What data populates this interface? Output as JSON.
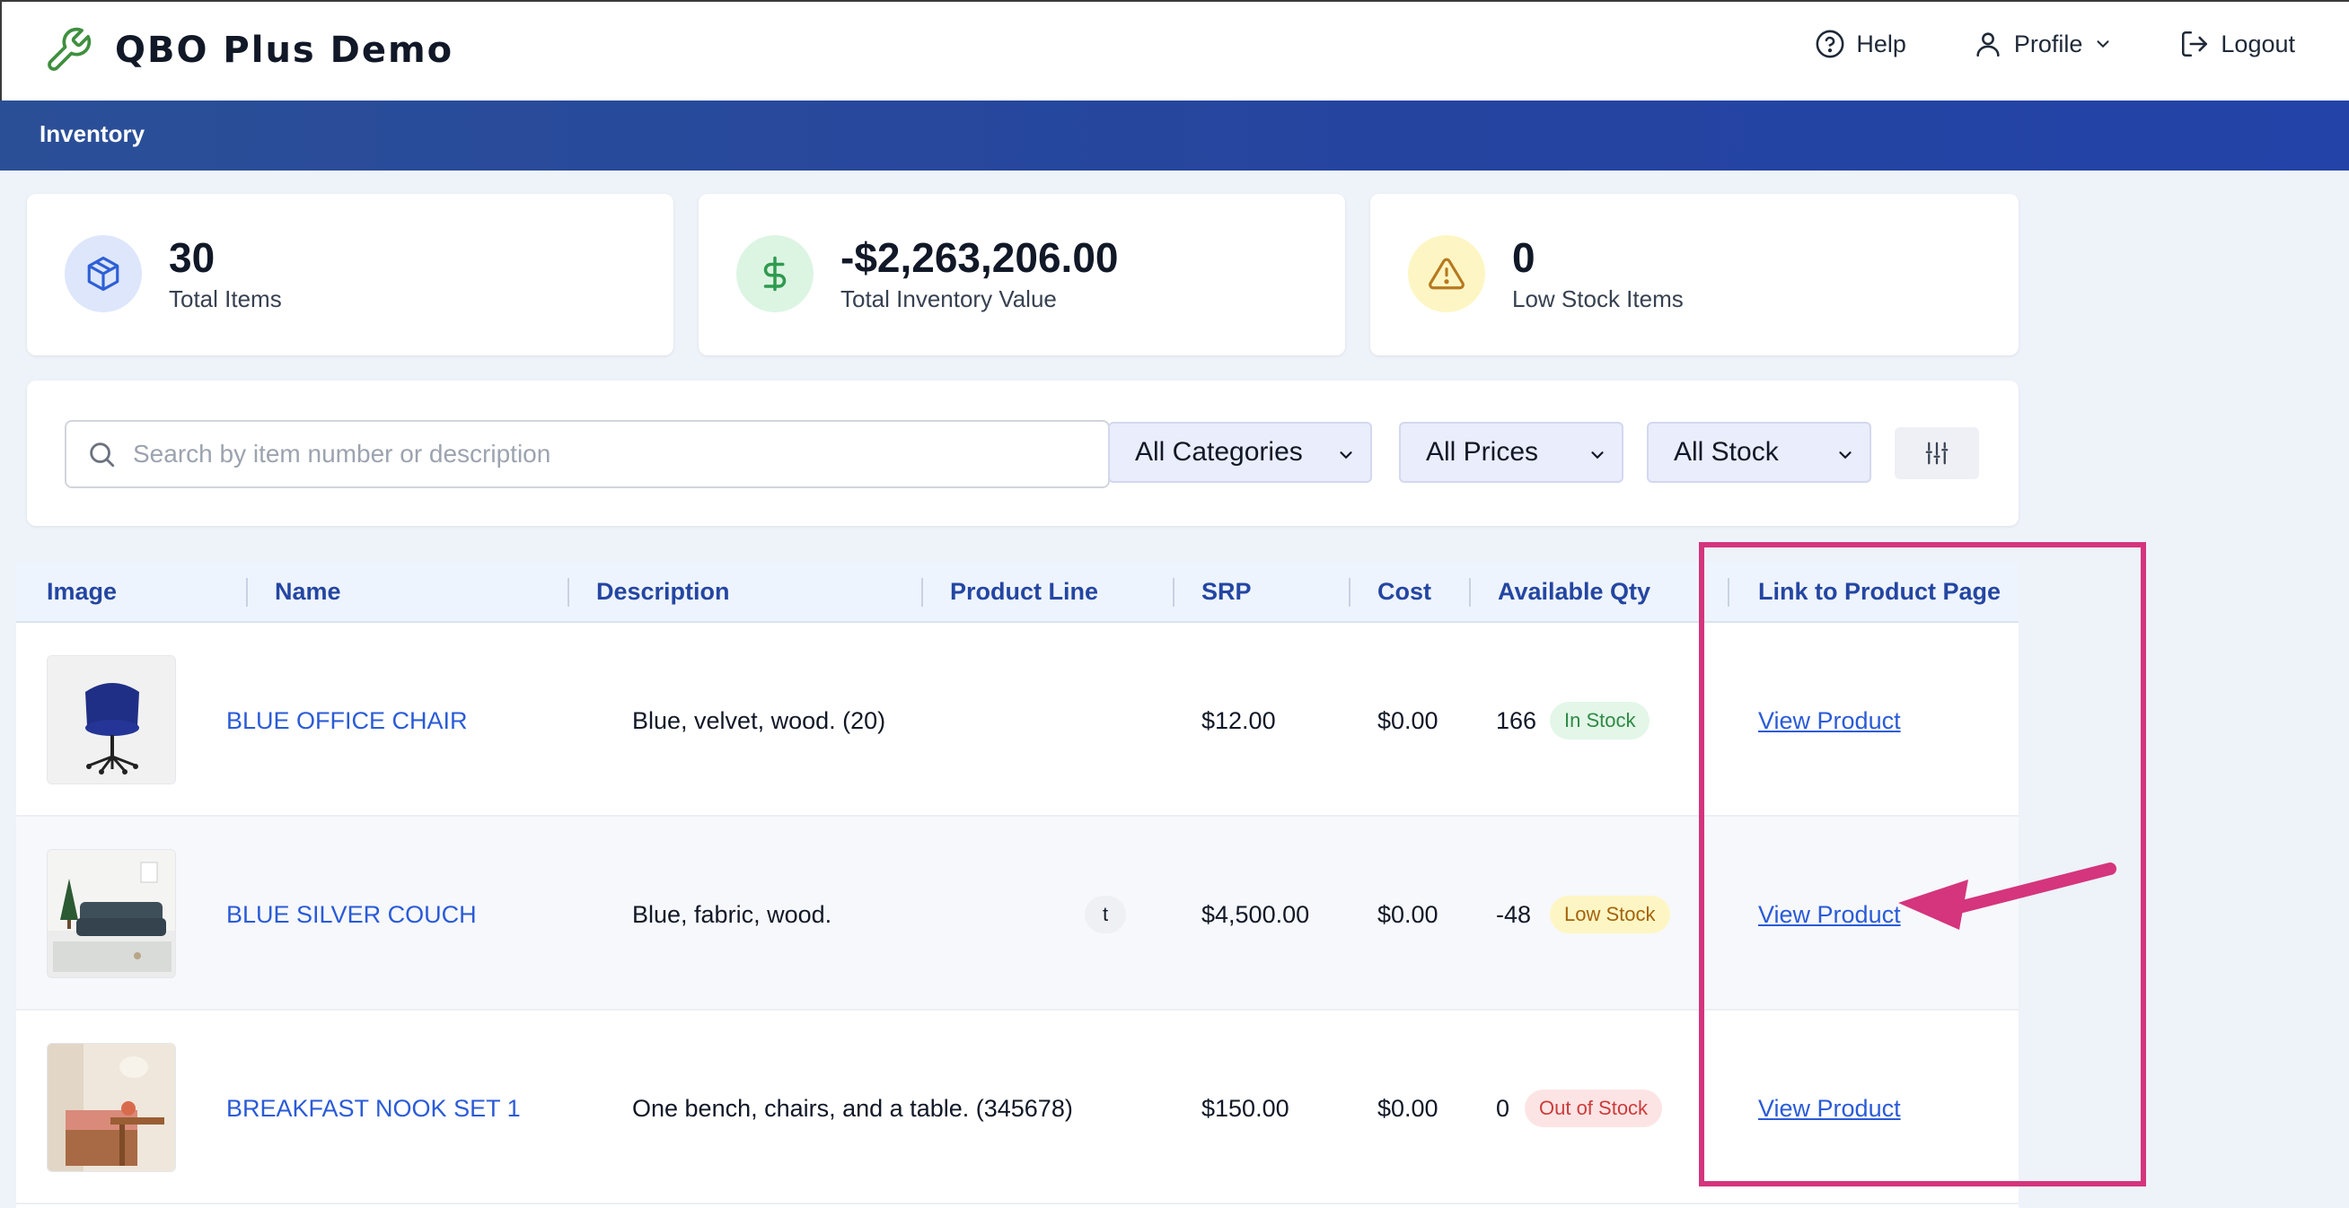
{
  "header": {
    "title": "QBO Plus Demo",
    "help": "Help",
    "profile": "Profile",
    "logout": "Logout"
  },
  "nav": {
    "current": "Inventory"
  },
  "stats": [
    {
      "value": "30",
      "label": "Total Items",
      "icon": "box-icon"
    },
    {
      "value": "-$2,263,206.00",
      "label": "Total Inventory Value",
      "icon": "dollar-icon"
    },
    {
      "value": "0",
      "label": "Low Stock Items",
      "icon": "warning-icon"
    }
  ],
  "filters": {
    "search_placeholder": "Search by item number or description",
    "category": "All Categories",
    "price": "All Prices",
    "stock": "All Stock"
  },
  "table": {
    "columns": [
      "Image",
      "Name",
      "Description",
      "Product Line",
      "SRP",
      "Cost",
      "Available Qty",
      "Link to Product Page"
    ],
    "rows": [
      {
        "name": "BLUE OFFICE CHAIR",
        "description": "Blue, velvet, wood. (20)",
        "product_line": "",
        "srp": "$12.00",
        "cost": "$0.00",
        "qty": "166",
        "status": "In Stock",
        "link": "View Product",
        "image": "office-chair"
      },
      {
        "name": "BLUE SILVER COUCH",
        "description": "Blue, fabric, wood.",
        "product_line": "t",
        "srp": "$4,500.00",
        "cost": "$0.00",
        "qty": "-48",
        "status": "Low Stock",
        "link": "View Product",
        "image": "couch"
      },
      {
        "name": "BREAKFAST NOOK SET 1",
        "description": "One bench, chairs, and a table. (345678)",
        "product_line": "",
        "srp": "$150.00",
        "cost": "$0.00",
        "qty": "0",
        "status": "Out of Stock",
        "link": "View Product",
        "image": "breakfast-nook"
      }
    ]
  },
  "colors": {
    "brand": "#2446a2",
    "annotation": "#d4357d",
    "link": "#2a5bd7"
  }
}
